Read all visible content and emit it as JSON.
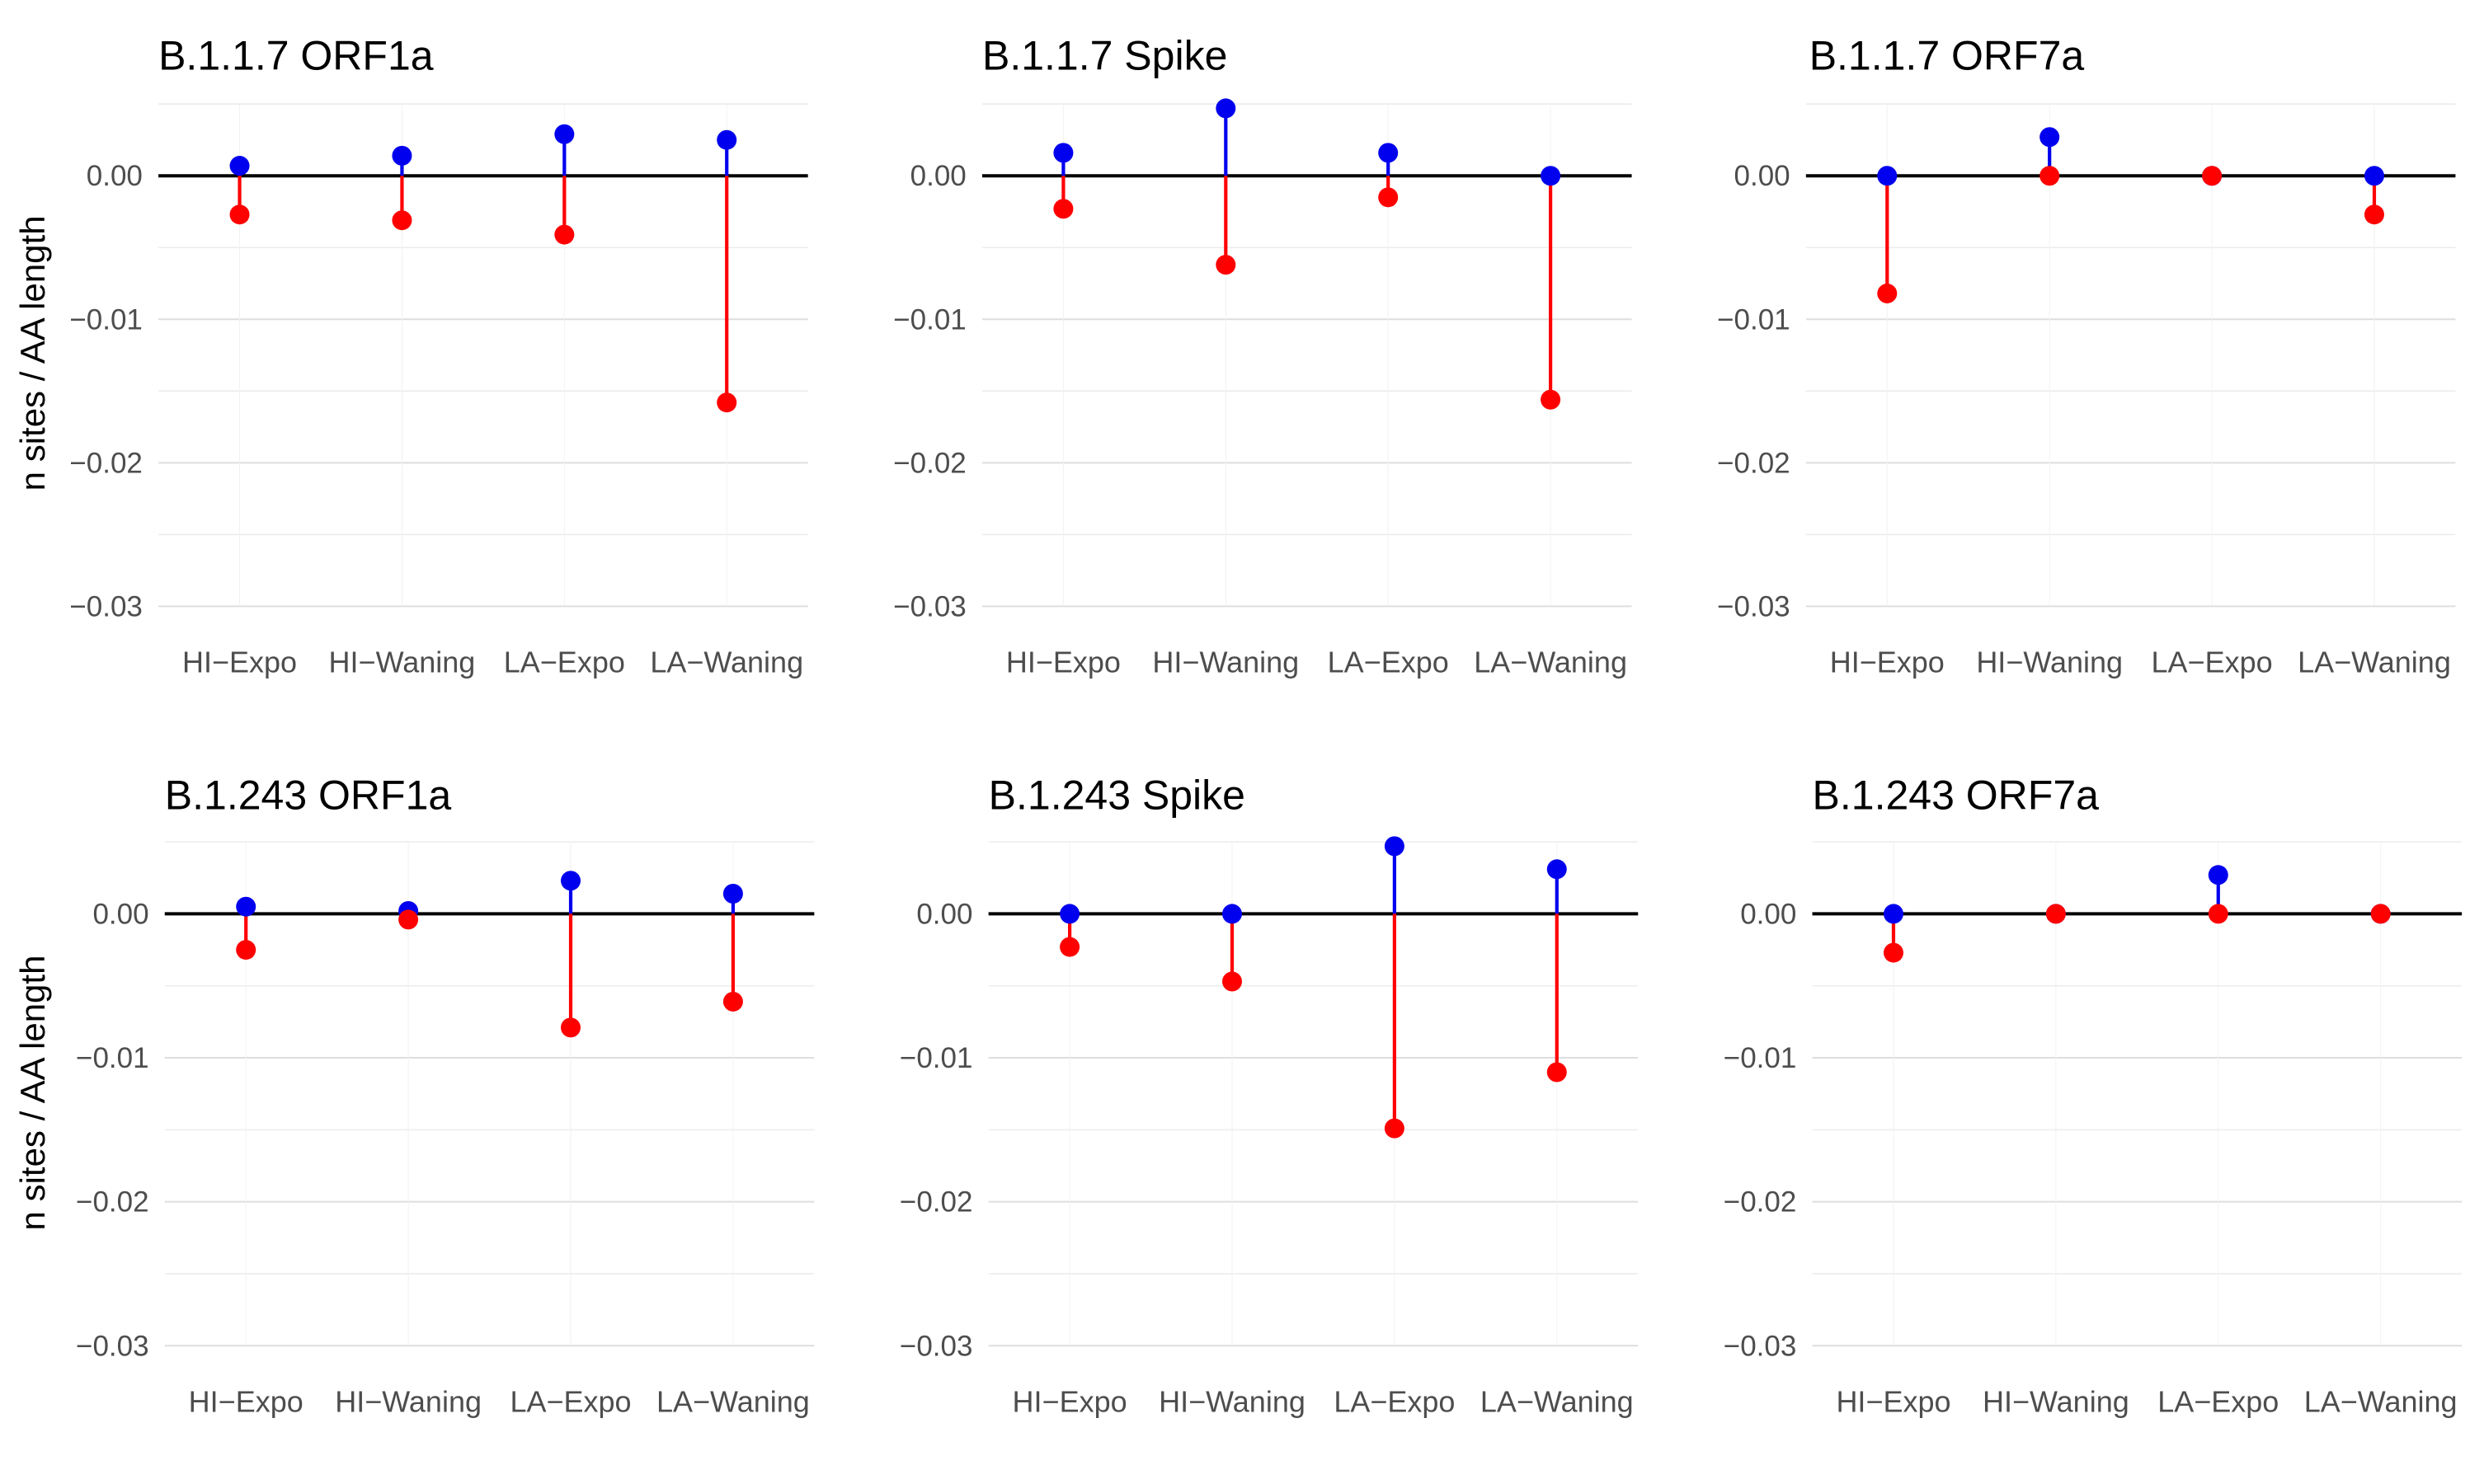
{
  "chart_data": [
    {
      "type": "lollipop",
      "title": "B.1.1.7 ORF1a",
      "ylabel": "n sites / AA length",
      "categories": [
        "HI−Expo",
        "HI−Waning",
        "LA−Expo",
        "LA−Waning"
      ],
      "yticks": [
        "0.00",
        "−0.01",
        "−0.02",
        "−0.03"
      ],
      "ylim": [
        -0.033,
        0.005
      ],
      "series": [
        {
          "color": "#0000ee",
          "values": [
            0.0007,
            0.0014,
            0.0029,
            0.0025
          ]
        },
        {
          "color": "#ff0000",
          "values": [
            -0.0027,
            -0.0031,
            -0.0041,
            -0.0158
          ]
        }
      ]
    },
    {
      "type": "lollipop",
      "title": "B.1.1.7 Spike",
      "ylabel": "",
      "categories": [
        "HI−Expo",
        "HI−Waning",
        "LA−Expo",
        "LA−Waning"
      ],
      "yticks": [
        "0.00",
        "−0.01",
        "−0.02",
        "−0.03"
      ],
      "ylim": [
        -0.033,
        0.005
      ],
      "series": [
        {
          "color": "#0000ee",
          "values": [
            0.0016,
            0.0047,
            0.0016,
            0.0
          ]
        },
        {
          "color": "#ff0000",
          "values": [
            -0.0023,
            -0.0062,
            -0.0015,
            -0.0156
          ]
        }
      ]
    },
    {
      "type": "lollipop",
      "title": "B.1.1.7 ORF7a",
      "ylabel": "",
      "categories": [
        "HI−Expo",
        "HI−Waning",
        "LA−Expo",
        "LA−Waning"
      ],
      "yticks": [
        "0.00",
        "−0.01",
        "−0.02",
        "−0.03"
      ],
      "ylim": [
        -0.033,
        0.005
      ],
      "series": [
        {
          "color": "#0000ee",
          "values": [
            0.0,
            0.0027,
            0.0,
            0.0
          ]
        },
        {
          "color": "#ff0000",
          "values": [
            -0.0082,
            0.0,
            0.0,
            -0.0027
          ]
        }
      ]
    },
    {
      "type": "lollipop",
      "title": "B.1.243 ORF1a",
      "ylabel": "n sites / AA length",
      "categories": [
        "HI−Expo",
        "HI−Waning",
        "LA−Expo",
        "LA−Waning"
      ],
      "yticks": [
        "0.00",
        "−0.01",
        "−0.02",
        "−0.03"
      ],
      "ylim": [
        -0.033,
        0.005
      ],
      "series": [
        {
          "color": "#0000ee",
          "values": [
            0.0005,
            0.0002,
            0.0023,
            0.0014
          ]
        },
        {
          "color": "#ff0000",
          "values": [
            -0.0025,
            -0.0004,
            -0.0079,
            -0.0061
          ]
        }
      ]
    },
    {
      "type": "lollipop",
      "title": "B.1.243 Spike",
      "ylabel": "",
      "categories": [
        "HI−Expo",
        "HI−Waning",
        "LA−Expo",
        "LA−Waning"
      ],
      "yticks": [
        "0.00",
        "−0.01",
        "−0.02",
        "−0.03"
      ],
      "ylim": [
        -0.033,
        0.005
      ],
      "series": [
        {
          "color": "#0000ee",
          "values": [
            0.0,
            0.0,
            0.0047,
            0.0031
          ]
        },
        {
          "color": "#ff0000",
          "values": [
            -0.0023,
            -0.0047,
            -0.0149,
            -0.011
          ]
        }
      ]
    },
    {
      "type": "lollipop",
      "title": "B.1.243 ORF7a",
      "ylabel": "",
      "categories": [
        "HI−Expo",
        "HI−Waning",
        "LA−Expo",
        "LA−Waning"
      ],
      "yticks": [
        "0.00",
        "−0.01",
        "−0.02",
        "−0.03"
      ],
      "ylim": [
        -0.033,
        0.005
      ],
      "series": [
        {
          "color": "#0000ee",
          "values": [
            0.0,
            0.0,
            0.0027,
            0.0
          ]
        },
        {
          "color": "#ff0000",
          "values": [
            -0.0027,
            0.0,
            0.0,
            0.0
          ]
        }
      ]
    }
  ]
}
